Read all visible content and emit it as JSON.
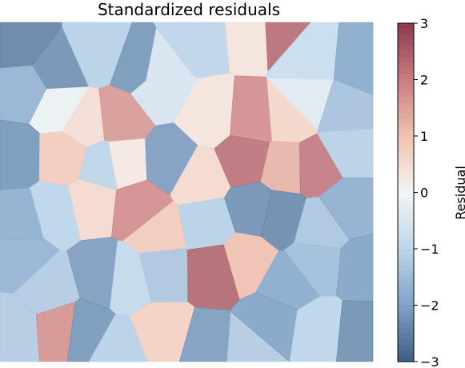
{
  "chart_data": {
    "type": "heatmap",
    "subtype": "voronoi-residual-map",
    "title": "Standardized residuals",
    "colorbar": {
      "label": "Residual",
      "min": -3,
      "max": 3,
      "ticks": [
        3,
        2,
        1,
        0,
        -1,
        -2,
        -3
      ],
      "tick_labels": [
        "3",
        "2",
        "1",
        "0",
        "−1",
        "−2",
        "−3"
      ],
      "colormap": "RdBu_r",
      "colors": [
        "#3d5e86",
        "#7fa2c8",
        "#bcd6ea",
        "#f4f4f4",
        "#f0c2ae",
        "#c87d7f",
        "#8c3a4c"
      ],
      "levels": 60
    },
    "cells": [
      {
        "residual": -2.6
      },
      {
        "residual": -2.4
      },
      {
        "residual": -1.2
      },
      {
        "residual": -2.3
      },
      {
        "residual": -0.6
      },
      {
        "residual": -1.1
      },
      {
        "residual": 0.4
      },
      {
        "residual": 2.4
      },
      {
        "residual": -0.9
      },
      {
        "residual": -2.0
      },
      {
        "residual": -1.8
      },
      {
        "residual": -0.2
      },
      {
        "residual": 0.5
      },
      {
        "residual": 1.7
      },
      {
        "residual": -0.6
      },
      {
        "residual": 0.4
      },
      {
        "residual": 1.9
      },
      {
        "residual": 0.7
      },
      {
        "residual": -0.4
      },
      {
        "residual": -1.5
      },
      {
        "residual": -2.3
      },
      {
        "residual": 0.9
      },
      {
        "residual": -1.1
      },
      {
        "residual": 0.3
      },
      {
        "residual": -2.2
      },
      {
        "residual": 0.6
      },
      {
        "residual": 2.3
      },
      {
        "residual": 1.3
      },
      {
        "residual": 2.2
      },
      {
        "residual": -1.2
      },
      {
        "residual": -1.9
      },
      {
        "residual": -1.1
      },
      {
        "residual": 0.6
      },
      {
        "residual": 1.9
      },
      {
        "residual": 0.9
      },
      {
        "residual": -1.2
      },
      {
        "residual": -2.4
      },
      {
        "residual": -2.5
      },
      {
        "residual": -1.4
      },
      {
        "residual": -1.9
      },
      {
        "residual": -1.8
      },
      {
        "residual": -1.3
      },
      {
        "residual": -2.2
      },
      {
        "residual": -1.0
      },
      {
        "residual": -1.4
      },
      {
        "residual": 2.5
      },
      {
        "residual": 1.1
      },
      {
        "residual": -2.0
      },
      {
        "residual": -1.6
      },
      {
        "residual": -2.1
      },
      {
        "residual": -1.3
      },
      {
        "residual": 1.8
      },
      {
        "residual": -2.3
      },
      {
        "residual": -1.2
      },
      {
        "residual": 0.8
      },
      {
        "residual": -2.2
      },
      {
        "residual": -1.3
      },
      {
        "residual": -2.1
      },
      {
        "residual": -1.1
      },
      {
        "residual": -2.4
      }
    ]
  }
}
